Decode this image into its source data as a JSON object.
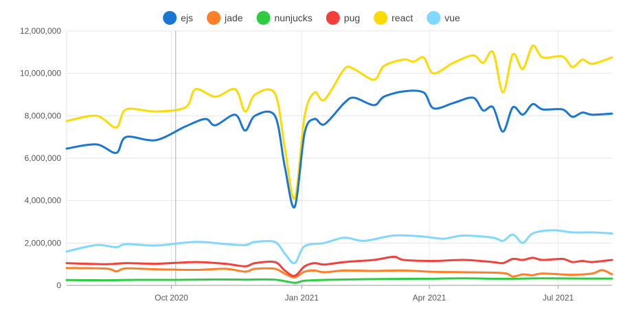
{
  "chart_data": {
    "type": "line",
    "ylim": [
      0,
      12000000
    ],
    "yticks": [
      0,
      2000000,
      4000000,
      6000000,
      8000000,
      10000000,
      12000000
    ],
    "ytick_labels": [
      "0",
      "2,000,000",
      "4,000,000",
      "6,000,000",
      "8,000,000",
      "10,000,000",
      "12,000,000"
    ],
    "xlim": [
      "2020-07-19",
      "2021-08-08"
    ],
    "xticks": [
      "2020-10-01",
      "2021-01-01",
      "2021-04-01",
      "2021-07-01"
    ],
    "xtick_labels": [
      "Oct 2020",
      "Jan 2021",
      "Apr 2021",
      "Jul 2021"
    ],
    "grid": true,
    "legend_position": "top",
    "crosshair_date": "2020-10-04",
    "series": [
      {
        "name": "ejs",
        "color": "#1976d2",
        "points": [
          [
            "2020-07-19",
            6450000
          ],
          [
            "2020-08-09",
            6650000
          ],
          [
            "2020-08-23",
            6250000
          ],
          [
            "2020-08-30",
            7000000
          ],
          [
            "2020-09-20",
            6850000
          ],
          [
            "2020-10-11",
            7500000
          ],
          [
            "2020-10-25",
            7850000
          ],
          [
            "2020-11-01",
            7550000
          ],
          [
            "2020-11-15",
            8050000
          ],
          [
            "2020-11-22",
            7300000
          ],
          [
            "2020-11-29",
            8000000
          ],
          [
            "2020-12-13",
            8000000
          ],
          [
            "2020-12-20",
            5600000
          ],
          [
            "2020-12-27",
            3700000
          ],
          [
            "2021-01-03",
            7200000
          ],
          [
            "2021-01-10",
            7850000
          ],
          [
            "2021-01-17",
            7600000
          ],
          [
            "2021-01-31",
            8600000
          ],
          [
            "2021-02-07",
            8850000
          ],
          [
            "2021-02-21",
            8500000
          ],
          [
            "2021-02-28",
            8900000
          ],
          [
            "2021-03-14",
            9150000
          ],
          [
            "2021-03-28",
            9100000
          ],
          [
            "2021-04-04",
            8350000
          ],
          [
            "2021-04-18",
            8600000
          ],
          [
            "2021-05-02",
            8850000
          ],
          [
            "2021-05-09",
            8250000
          ],
          [
            "2021-05-16",
            8400000
          ],
          [
            "2021-05-23",
            7250000
          ],
          [
            "2021-05-30",
            8400000
          ],
          [
            "2021-06-06",
            8050000
          ],
          [
            "2021-06-13",
            8550000
          ],
          [
            "2021-06-20",
            8300000
          ],
          [
            "2021-07-04",
            8300000
          ],
          [
            "2021-07-11",
            7950000
          ],
          [
            "2021-07-18",
            8150000
          ],
          [
            "2021-07-25",
            8050000
          ],
          [
            "2021-08-08",
            8100000
          ]
        ]
      },
      {
        "name": "jade",
        "color": "#fd7f28",
        "points": [
          [
            "2020-07-19",
            820000
          ],
          [
            "2020-08-16",
            790000
          ],
          [
            "2020-08-23",
            660000
          ],
          [
            "2020-08-30",
            800000
          ],
          [
            "2020-09-20",
            760000
          ],
          [
            "2020-10-18",
            730000
          ],
          [
            "2020-11-08",
            780000
          ],
          [
            "2020-11-22",
            650000
          ],
          [
            "2020-11-29",
            780000
          ],
          [
            "2020-12-13",
            780000
          ],
          [
            "2020-12-20",
            550000
          ],
          [
            "2020-12-27",
            380000
          ],
          [
            "2021-01-03",
            650000
          ],
          [
            "2021-01-10",
            700000
          ],
          [
            "2021-01-17",
            620000
          ],
          [
            "2021-01-31",
            700000
          ],
          [
            "2021-02-21",
            680000
          ],
          [
            "2021-03-14",
            700000
          ],
          [
            "2021-04-04",
            640000
          ],
          [
            "2021-04-25",
            620000
          ],
          [
            "2021-05-23",
            580000
          ],
          [
            "2021-05-30",
            420000
          ],
          [
            "2021-06-06",
            520000
          ],
          [
            "2021-06-13",
            480000
          ],
          [
            "2021-06-20",
            560000
          ],
          [
            "2021-07-11",
            500000
          ],
          [
            "2021-07-25",
            560000
          ],
          [
            "2021-08-01",
            720000
          ],
          [
            "2021-08-08",
            520000
          ]
        ]
      },
      {
        "name": "nunjucks",
        "color": "#2ecc40",
        "points": [
          [
            "2020-07-19",
            250000
          ],
          [
            "2020-08-16",
            240000
          ],
          [
            "2020-09-06",
            260000
          ],
          [
            "2020-10-04",
            260000
          ],
          [
            "2020-11-01",
            280000
          ],
          [
            "2020-11-22",
            270000
          ],
          [
            "2020-12-13",
            270000
          ],
          [
            "2020-12-27",
            120000
          ],
          [
            "2021-01-03",
            220000
          ],
          [
            "2021-01-24",
            270000
          ],
          [
            "2021-02-28",
            300000
          ],
          [
            "2021-03-28",
            310000
          ],
          [
            "2021-04-25",
            330000
          ],
          [
            "2021-05-23",
            310000
          ],
          [
            "2021-06-20",
            330000
          ],
          [
            "2021-07-18",
            320000
          ],
          [
            "2021-08-08",
            320000
          ]
        ]
      },
      {
        "name": "pug",
        "color": "#f3403b",
        "points": [
          [
            "2020-07-19",
            1050000
          ],
          [
            "2020-08-16",
            1000000
          ],
          [
            "2020-08-30",
            1050000
          ],
          [
            "2020-09-20",
            1020000
          ],
          [
            "2020-10-18",
            1100000
          ],
          [
            "2020-11-08",
            1020000
          ],
          [
            "2020-11-22",
            900000
          ],
          [
            "2020-11-29",
            1050000
          ],
          [
            "2020-12-13",
            1100000
          ],
          [
            "2020-12-20",
            700000
          ],
          [
            "2020-12-27",
            450000
          ],
          [
            "2021-01-03",
            900000
          ],
          [
            "2021-01-10",
            1050000
          ],
          [
            "2021-01-17",
            980000
          ],
          [
            "2021-01-31",
            1100000
          ],
          [
            "2021-02-21",
            1200000
          ],
          [
            "2021-03-07",
            1350000
          ],
          [
            "2021-03-14",
            1200000
          ],
          [
            "2021-04-04",
            1150000
          ],
          [
            "2021-04-25",
            1200000
          ],
          [
            "2021-05-16",
            1100000
          ],
          [
            "2021-05-23",
            1050000
          ],
          [
            "2021-05-30",
            1250000
          ],
          [
            "2021-06-06",
            1200000
          ],
          [
            "2021-06-13",
            1300000
          ],
          [
            "2021-06-20",
            1200000
          ],
          [
            "2021-07-04",
            1250000
          ],
          [
            "2021-07-11",
            1100000
          ],
          [
            "2021-07-18",
            1150000
          ],
          [
            "2021-07-25",
            1100000
          ],
          [
            "2021-08-08",
            1200000
          ]
        ]
      },
      {
        "name": "react",
        "color": "#fddb00",
        "points": [
          [
            "2020-07-19",
            7750000
          ],
          [
            "2020-08-09",
            8000000
          ],
          [
            "2020-08-23",
            7450000
          ],
          [
            "2020-08-30",
            8300000
          ],
          [
            "2020-09-20",
            8200000
          ],
          [
            "2020-10-11",
            8400000
          ],
          [
            "2020-10-18",
            9250000
          ],
          [
            "2020-11-01",
            8900000
          ],
          [
            "2020-11-15",
            9250000
          ],
          [
            "2020-11-22",
            8200000
          ],
          [
            "2020-11-29",
            9000000
          ],
          [
            "2020-12-13",
            9050000
          ],
          [
            "2020-12-20",
            6500000
          ],
          [
            "2020-12-27",
            4100000
          ],
          [
            "2021-01-03",
            8000000
          ],
          [
            "2021-01-10",
            9100000
          ],
          [
            "2021-01-17",
            8750000
          ],
          [
            "2021-01-31",
            10200000
          ],
          [
            "2021-02-07",
            10200000
          ],
          [
            "2021-02-21",
            9700000
          ],
          [
            "2021-02-28",
            10350000
          ],
          [
            "2021-03-14",
            10650000
          ],
          [
            "2021-03-21",
            10550000
          ],
          [
            "2021-03-28",
            10750000
          ],
          [
            "2021-04-04",
            10000000
          ],
          [
            "2021-04-18",
            10500000
          ],
          [
            "2021-05-02",
            10850000
          ],
          [
            "2021-05-09",
            10500000
          ],
          [
            "2021-05-16",
            11000000
          ],
          [
            "2021-05-23",
            9100000
          ],
          [
            "2021-05-30",
            10900000
          ],
          [
            "2021-06-06",
            10200000
          ],
          [
            "2021-06-13",
            11300000
          ],
          [
            "2021-06-20",
            10750000
          ],
          [
            "2021-07-04",
            10800000
          ],
          [
            "2021-07-11",
            10300000
          ],
          [
            "2021-07-18",
            10650000
          ],
          [
            "2021-07-25",
            10450000
          ],
          [
            "2021-08-08",
            10750000
          ]
        ]
      },
      {
        "name": "vue",
        "color": "#80d8ff",
        "points": [
          [
            "2020-07-19",
            1600000
          ],
          [
            "2020-08-09",
            1900000
          ],
          [
            "2020-08-23",
            1800000
          ],
          [
            "2020-08-30",
            1950000
          ],
          [
            "2020-09-20",
            1880000
          ],
          [
            "2020-10-18",
            2050000
          ],
          [
            "2020-11-08",
            1950000
          ],
          [
            "2020-11-22",
            1900000
          ],
          [
            "2020-11-29",
            2050000
          ],
          [
            "2020-12-13",
            2050000
          ],
          [
            "2020-12-20",
            1500000
          ],
          [
            "2020-12-27",
            1050000
          ],
          [
            "2021-01-03",
            1850000
          ],
          [
            "2021-01-17",
            2000000
          ],
          [
            "2021-01-31",
            2250000
          ],
          [
            "2021-02-14",
            2100000
          ],
          [
            "2021-03-07",
            2350000
          ],
          [
            "2021-03-28",
            2300000
          ],
          [
            "2021-04-11",
            2200000
          ],
          [
            "2021-04-25",
            2350000
          ],
          [
            "2021-05-16",
            2250000
          ],
          [
            "2021-05-23",
            2100000
          ],
          [
            "2021-05-30",
            2400000
          ],
          [
            "2021-06-06",
            2000000
          ],
          [
            "2021-06-13",
            2450000
          ],
          [
            "2021-06-27",
            2600000
          ],
          [
            "2021-07-11",
            2500000
          ],
          [
            "2021-07-25",
            2500000
          ],
          [
            "2021-08-08",
            2450000
          ]
        ]
      }
    ]
  }
}
